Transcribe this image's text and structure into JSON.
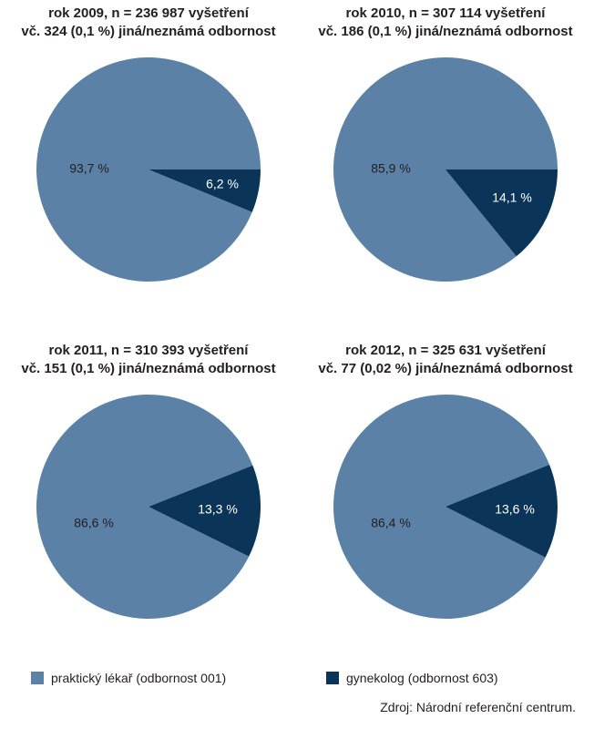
{
  "chart_data": [
    {
      "type": "pie",
      "title": "rok 2009, n = 236 987 vyšetření",
      "subtitle": "vč. 324 (0,1 %) jiná/neznámá odbornost",
      "slices": [
        {
          "name": "praktický lékař (odbornost 001)",
          "value": 93.7,
          "label": "93,7 %",
          "color": "#5b81a6"
        },
        {
          "name": "gynekolog (odbornost 603)",
          "value": 6.2,
          "label": "6,2 %",
          "color": "#0a3559"
        }
      ]
    },
    {
      "type": "pie",
      "title": "rok 2010, n = 307 114 vyšetření",
      "subtitle": "vč. 186 (0,1 %) jiná/neznámá odbornost",
      "slices": [
        {
          "name": "praktický lékař (odbornost 001)",
          "value": 85.9,
          "label": "85,9 %",
          "color": "#5b81a6"
        },
        {
          "name": "gynekolog (odbornost 603)",
          "value": 14.1,
          "label": "14,1 %",
          "color": "#0a3559"
        }
      ]
    },
    {
      "type": "pie",
      "title": "rok 2011, n = 310 393 vyšetření",
      "subtitle": "vč. 151 (0,1 %) jiná/neznámá odbornost",
      "slices": [
        {
          "name": "praktický lékař (odbornost 001)",
          "value": 86.6,
          "label": "86,6 %",
          "color": "#5b81a6"
        },
        {
          "name": "gynekolog (odbornost 603)",
          "value": 13.3,
          "label": "13,3 %",
          "color": "#0a3559"
        }
      ]
    },
    {
      "type": "pie",
      "title": "rok 2012, n = 325 631 vyšetření",
      "subtitle": "vč. 77 (0,02 %) jiná/neznámá odbornost",
      "slices": [
        {
          "name": "praktický lékař (odbornost 001)",
          "value": 86.4,
          "label": "86,4 %",
          "color": "#5b81a6"
        },
        {
          "name": "gynekolog (odbornost 603)",
          "value": 13.6,
          "label": "13,6 %",
          "color": "#0a3559"
        }
      ]
    }
  ],
  "legend": {
    "items": [
      {
        "label": "praktický lékař (odbornost 001)",
        "color": "#5b81a6"
      },
      {
        "label": "gynekolog (odbornost 603)",
        "color": "#0a3559"
      }
    ]
  },
  "source": "Zdroj: Národní referenční centrum."
}
